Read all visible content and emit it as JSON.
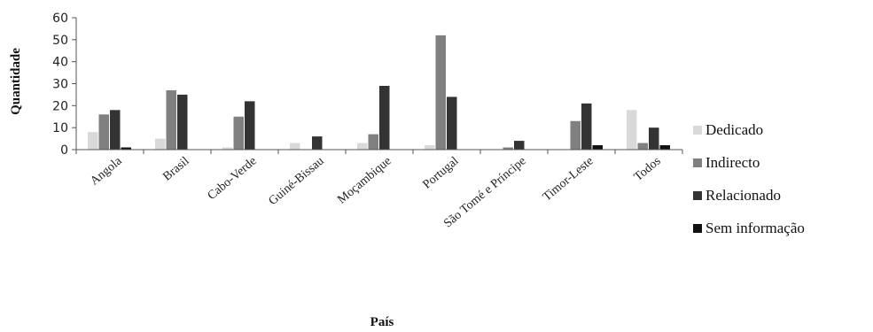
{
  "chart_data": {
    "type": "bar",
    "xlabel": "País",
    "ylabel": "Quantidade",
    "ylim": [
      0,
      60
    ],
    "yticks": [
      0,
      10,
      20,
      30,
      40,
      50,
      60
    ],
    "grid": false,
    "legend_position": "right",
    "categories": [
      "Angola",
      "Brasil",
      "Cabo-Verde",
      "Guiné-Bissau",
      "Moçambique",
      "Portugal",
      "São Tomé e Príncipe",
      "Timor-Leste",
      "Todos"
    ],
    "series": [
      {
        "name": "Dedicado",
        "color": "#d9d9d9",
        "values": [
          8,
          5,
          1,
          3,
          3,
          2,
          0,
          0,
          18
        ]
      },
      {
        "name": "Indirecto",
        "color": "#808080",
        "values": [
          16,
          27,
          15,
          0,
          7,
          52,
          1,
          13,
          3
        ]
      },
      {
        "name": "Relacionado",
        "color": "#333333",
        "values": [
          18,
          25,
          22,
          6,
          29,
          24,
          4,
          21,
          10
        ]
      },
      {
        "name": "Sem informação",
        "color": "#111111",
        "values": [
          1,
          0,
          0,
          0,
          0,
          0,
          0,
          2,
          2
        ]
      }
    ]
  }
}
